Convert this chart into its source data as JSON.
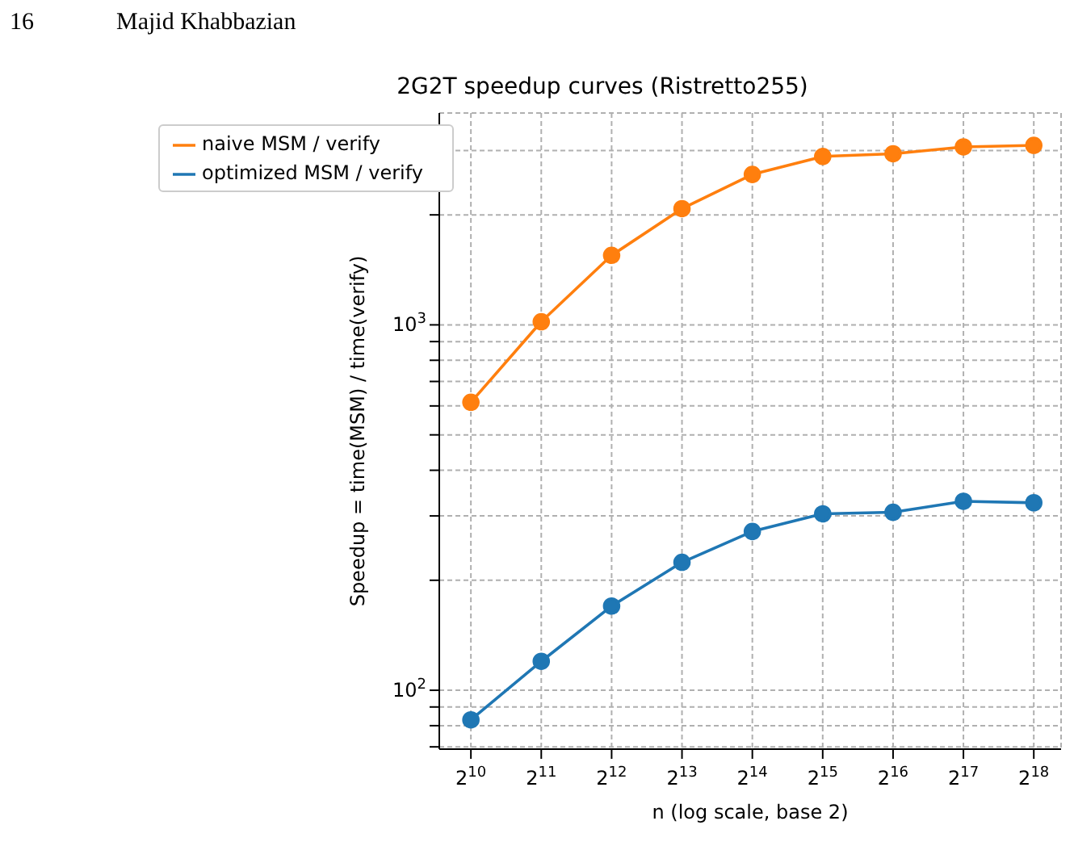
{
  "chart_data": {
    "type": "line",
    "title": "2G2T speedup curves (Ristretto255)",
    "xlabel": "n (log scale, base 2)",
    "ylabel": "Speedup = time(MSM) / time(verify)",
    "annotations": [
      "16",
      "Majid Khabbazian"
    ],
    "x": [
      1024,
      2048,
      4096,
      8192,
      16384,
      32768,
      65536,
      131072,
      262144
    ],
    "series": [
      {
        "name": "optimized MSM / verify",
        "color": "#1f77b4",
        "values": [
          83,
          120,
          170,
          224,
          272,
          304,
          307,
          329,
          326
        ]
      },
      {
        "name": "naive MSM / verify",
        "color": "#ff7f0e",
        "values": [
          614,
          1020,
          1550,
          2080,
          2580,
          2890,
          2940,
          3070,
          3100
        ]
      }
    ],
    "log": "xy",
    "xlim": [
      750,
      343000
    ],
    "ylim": [
      69,
      3800
    ],
    "xticks": [
      {
        "value": 1024,
        "label": "2$^{10}$"
      },
      {
        "value": 2048,
        "label": "2$^{11}$"
      },
      {
        "value": 4096,
        "label": "2$^{12}$"
      },
      {
        "value": 8192,
        "label": "2$^{13}$"
      },
      {
        "value": 16384,
        "label": "2$^{14}$"
      },
      {
        "value": 32768,
        "label": "2$^{15}$"
      },
      {
        "value": 65536,
        "label": "2$^{16}$"
      },
      {
        "value": 131072,
        "label": "2$^{17}$"
      },
      {
        "value": 262144,
        "label": "2$^{18}$"
      }
    ],
    "yticks": [
      {
        "value": 70,
        "label": null
      },
      {
        "value": 80,
        "label": null
      },
      {
        "value": 90,
        "label": null
      },
      {
        "value": 100,
        "label": "10$^{2}$"
      },
      {
        "value": 200,
        "label": null
      },
      {
        "value": 300,
        "label": null
      },
      {
        "value": 400,
        "label": null
      },
      {
        "value": 500,
        "label": null
      },
      {
        "value": 600,
        "label": null
      },
      {
        "value": 700,
        "label": null
      },
      {
        "value": 800,
        "label": null
      },
      {
        "value": 900,
        "label": null
      },
      {
        "value": 1000,
        "label": "10$^{3}$"
      },
      {
        "value": 2000,
        "label": null
      },
      {
        "value": 3000,
        "label": null
      }
    ],
    "grid": true,
    "legend": "top left",
    "marker": "circle",
    "line_style": "solid"
  }
}
